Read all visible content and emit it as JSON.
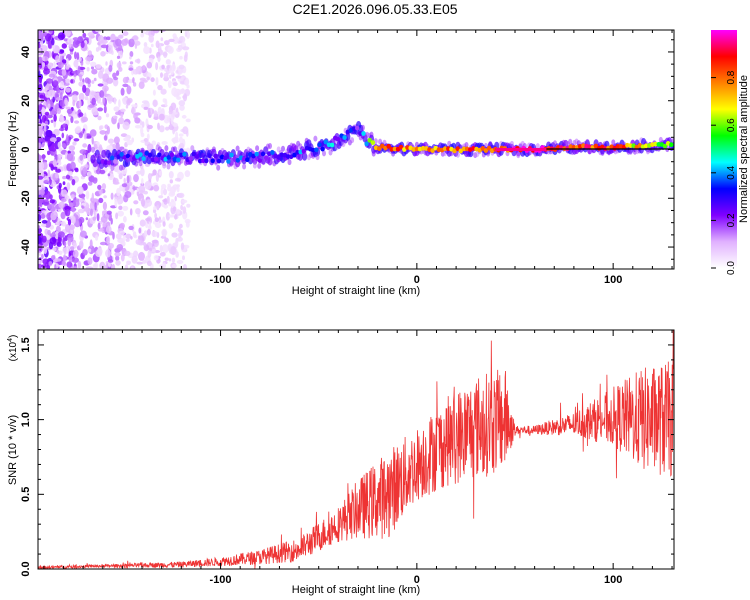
{
  "figure_title": "C2E1.2026.096.05.33.E05",
  "chart_data": [
    {
      "type": "heatmap",
      "title": "C2E1.2026.096.05.33.E05",
      "xlabel": "Height of straight line (km)",
      "ylabel": "Frequency (Hz)",
      "xlim": [
        -193,
        131
      ],
      "ylim": [
        -49,
        49
      ],
      "x_ticks": [
        -100,
        0,
        100
      ],
      "y_ticks": [
        -40,
        -20,
        0,
        20,
        40
      ],
      "colorbar": {
        "label": "Normalized spectral amplitude",
        "range": [
          0,
          1
        ],
        "ticks": [
          "0.0",
          "0.2",
          "0.4",
          "0.6",
          "0.8"
        ],
        "colormap": [
          "#ffffff",
          "#e0b0ff",
          "#8000ff",
          "#0000ff",
          "#00ffff",
          "#00ff00",
          "#ffff00",
          "#ff8000",
          "#ff0000",
          "#ff00ff"
        ]
      },
      "ridge": {
        "x": [
          -160,
          -140,
          -120,
          -100,
          -80,
          -60,
          -45,
          -35,
          -30,
          -25,
          -20,
          0,
          40,
          60,
          80,
          100,
          131
        ],
        "freq_hz": [
          -4,
          -3,
          -3,
          -4,
          -3,
          -1,
          2,
          6,
          9,
          3,
          1,
          0,
          0,
          0,
          1,
          1,
          2
        ],
        "amplitude": [
          0.25,
          0.3,
          0.3,
          0.3,
          0.3,
          0.3,
          0.35,
          0.35,
          0.3,
          0.55,
          0.75,
          0.8,
          0.8,
          0.98,
          0.85,
          0.8,
          0.55
        ]
      },
      "noise_region_x": [
        -193,
        -120
      ]
    },
    {
      "type": "line",
      "xlabel": "Height of straight line (km)",
      "ylabel": "SNR (10 * v/v)",
      "y_scale_label": "(x10",
      "y_scale_exp": "4",
      "xlim": [
        -193,
        131
      ],
      "ylim": [
        0,
        1.6
      ],
      "x_ticks": [
        -100,
        0,
        100
      ],
      "y_ticks": [
        "0.0",
        "0.5",
        "1.0",
        "1.5"
      ],
      "series": [
        {
          "name": "SNR",
          "color": "#ee3333",
          "envelope_x": [
            -193,
            -160,
            -120,
            -100,
            -80,
            -60,
            -40,
            -30,
            -15,
            0,
            15,
            30,
            45,
            50,
            60,
            80,
            100,
            115,
            131
          ],
          "mean_y": [
            0.01,
            0.02,
            0.03,
            0.05,
            0.08,
            0.13,
            0.3,
            0.4,
            0.5,
            0.7,
            0.85,
            0.95,
            1.0,
            0.93,
            0.93,
            0.97,
            1.02,
            1.0,
            1.0
          ],
          "spread_y": [
            0.01,
            0.01,
            0.02,
            0.03,
            0.05,
            0.08,
            0.12,
            0.2,
            0.3,
            0.25,
            0.3,
            0.35,
            0.35,
            0.03,
            0.03,
            0.08,
            0.2,
            0.35,
            0.4
          ]
        }
      ]
    }
  ]
}
